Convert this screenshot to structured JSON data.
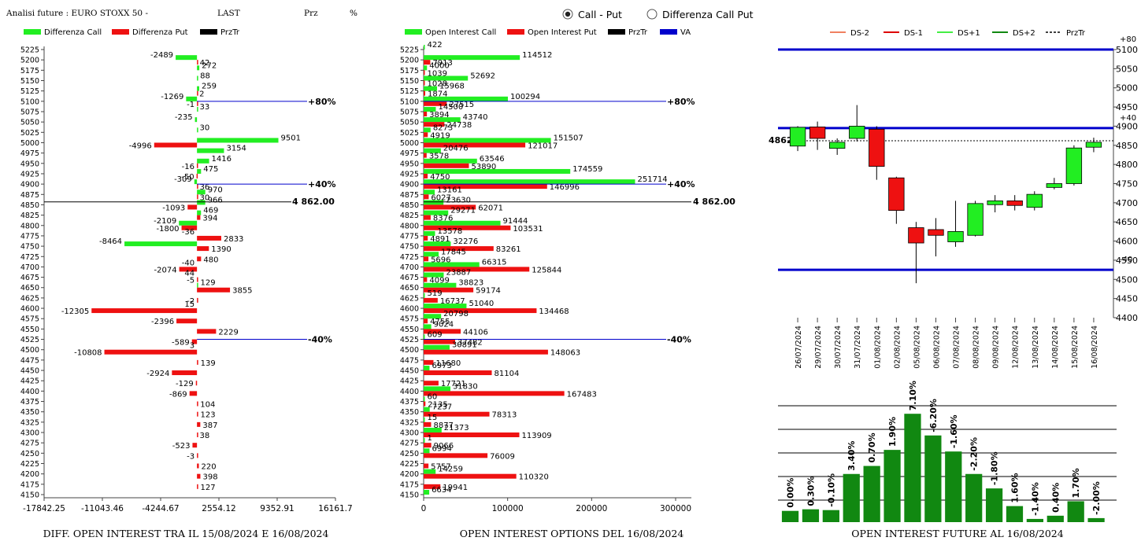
{
  "header": {
    "title": "Analisi future : EURO STOXX 50 -",
    "last_label": "LAST",
    "prz_label": "Prz",
    "pct_label": "%"
  },
  "radio": {
    "option1": "Call - Put",
    "option2": "Differenza Call Put",
    "selected": 1
  },
  "colors": {
    "green": "#22ee22",
    "red": "#ee1111",
    "blue": "#0000cc",
    "darkgreen": "#118811"
  },
  "chart_data": [
    {
      "type": "bar",
      "orientation": "horizontal",
      "title": "DIFF. OPEN INTEREST TRA IL 15/08/2024 E 16/08/2024",
      "legend": [
        "Differenza Call",
        "Differenza Put",
        "PrzTr"
      ],
      "xlim": [
        -17842.25,
        16161.7
      ],
      "xticks": [
        "-17842.25",
        "-11043.46",
        "-4244.67",
        "2554.12",
        "9352.91",
        "16161.7"
      ],
      "strikes": [
        5225,
        5200,
        5175,
        5150,
        5125,
        5100,
        5075,
        5050,
        5025,
        5000,
        4975,
        4950,
        4925,
        4900,
        4875,
        4850,
        4825,
        4800,
        4775,
        4750,
        4725,
        4700,
        4675,
        4650,
        4625,
        4600,
        4575,
        4550,
        4525,
        4500,
        4475,
        4450,
        4425,
        4400,
        4375,
        4350,
        4325,
        4300,
        4275,
        4250,
        4225,
        4200,
        4175,
        4150
      ],
      "call_diff": [
        0,
        -2489,
        272,
        88,
        259,
        -1269,
        33,
        -235,
        30,
        9501,
        3154,
        1416,
        475,
        -309,
        970,
        966,
        469,
        -2109,
        0,
        -8464,
        0,
        0,
        0,
        129,
        0,
        0,
        0,
        0,
        0,
        0,
        0,
        0,
        0,
        0,
        0,
        0,
        0,
        0,
        0,
        0,
        0,
        0,
        0,
        0
      ],
      "put_diff": [
        0,
        42,
        0,
        0,
        2,
        -1,
        0,
        0,
        0,
        -4996,
        0,
        -16,
        -50,
        36,
        30,
        -1093,
        394,
        -1800,
        2833,
        1390,
        480,
        -2074,
        -5,
        3855,
        -2,
        -12305,
        -2396,
        2229,
        -589,
        -10808,
        139,
        -2924,
        -129,
        -869,
        104,
        123,
        387,
        38,
        -523,
        -3,
        220,
        398,
        127,
        0
      ],
      "extra_labels": [
        {
          "strike": 4700,
          "text": "-40"
        },
        {
          "strike": 4675,
          "text": "44"
        },
        {
          "strike": 4775,
          "text": "-36"
        },
        {
          "strike": 4600,
          "text": "15"
        },
        {
          "strike": 4500,
          "text": "3"
        }
      ],
      "lines": [
        {
          "strike": 5100,
          "label": "+80%"
        },
        {
          "strike": 4900,
          "label": "+40%"
        },
        {
          "strike": 4525,
          "label": "-40%"
        }
      ],
      "price": {
        "strike": 4857,
        "label": "4 862.00"
      }
    },
    {
      "type": "bar",
      "orientation": "horizontal",
      "title": "OPEN INTEREST OPTIONS DEL 16/08/2024",
      "legend": [
        "Open Interest Call",
        "Open Interest Put",
        "PrzTr",
        "VA"
      ],
      "xlim": [
        0,
        300000
      ],
      "xticks": [
        "0",
        "100000",
        "200000",
        "300000"
      ],
      "strikes": [
        5225,
        5200,
        5175,
        5150,
        5125,
        5100,
        5075,
        5050,
        5025,
        5000,
        4975,
        4950,
        4925,
        4900,
        4875,
        4850,
        4825,
        4800,
        4775,
        4750,
        4725,
        4700,
        4675,
        4650,
        4625,
        4600,
        4575,
        4550,
        4525,
        4500,
        4475,
        4450,
        4425,
        4400,
        4375,
        4350,
        4325,
        4300,
        4275,
        4250,
        4225,
        4200,
        4175,
        4150
      ],
      "call_oi": [
        422,
        114512,
        4000,
        52692,
        15968,
        100294,
        14500,
        43740,
        8273,
        151507,
        20476,
        63546,
        174559,
        251714,
        13161,
        23630,
        29271,
        91444,
        13578,
        32276,
        17845,
        66315,
        23887,
        38823,
        519,
        51040,
        20798,
        9024,
        609,
        30891,
        0,
        6973,
        0,
        31830,
        60,
        7237,
        15,
        21373,
        1,
        6994,
        0,
        14259,
        0,
        6634
      ],
      "put_oi": [
        0,
        7913,
        1039,
        1028,
        1874,
        27515,
        3894,
        24738,
        4919,
        121017,
        3578,
        53890,
        4750,
        146996,
        6027,
        62071,
        8376,
        103531,
        4891,
        83261,
        5696,
        125844,
        4099,
        59174,
        16737,
        134468,
        4755,
        44106,
        37482,
        148063,
        11680,
        81104,
        17721,
        167483,
        2135,
        78313,
        8877,
        113909,
        9066,
        76009,
        5757,
        110320,
        19941,
        0
      ],
      "lines": [
        {
          "strike": 5100,
          "label": "+80%"
        },
        {
          "strike": 4900,
          "label": "+40%"
        },
        {
          "strike": 4525,
          "label": "-40%"
        }
      ],
      "price": {
        "strike": 4857,
        "label": "4 862.00"
      }
    },
    {
      "type": "candlestick",
      "legend": [
        "DS-2",
        "DS-1",
        "DS+1",
        "DS+2",
        "PrzTr"
      ],
      "ylim": [
        4400,
        5100
      ],
      "yticks": [
        "5100",
        "5050",
        "5000",
        "4950",
        "4900",
        "4850",
        "4800",
        "4750",
        "4700",
        "4650",
        "4600",
        "4550",
        "4500",
        "4450",
        "4400"
      ],
      "dates": [
        "26/07/2024",
        "29/07/2024",
        "30/07/2024",
        "31/07/2024",
        "01/08/2024",
        "02/08/2024",
        "05/08/2024",
        "06/08/2024",
        "07/08/2024",
        "08/08/2024",
        "09/08/2024",
        "12/08/2024",
        "13/08/2024",
        "14/08/2024",
        "15/08/2024",
        "16/08/2024"
      ],
      "open": [
        4848,
        4898,
        4842,
        4868,
        4892,
        4765,
        4635,
        4630,
        4598,
        4615,
        4695,
        4705,
        4688,
        4740,
        4750,
        4845
      ],
      "close": [
        4897,
        4868,
        4858,
        4900,
        4795,
        4680,
        4595,
        4615,
        4625,
        4698,
        4705,
        4693,
        4722,
        4750,
        4843,
        4858
      ],
      "high": [
        4900,
        4912,
        4868,
        4955,
        4900,
        4768,
        4650,
        4660,
        4705,
        4705,
        4720,
        4720,
        4730,
        4765,
        4850,
        4870
      ],
      "low": [
        4835,
        4838,
        4825,
        4860,
        4760,
        4645,
        4490,
        4560,
        4585,
        4612,
        4675,
        4680,
        4680,
        4735,
        4745,
        4832
      ],
      "levels": [
        {
          "value": 5100,
          "label": "+80"
        },
        {
          "value": 4895,
          "label": "+40"
        },
        {
          "value": 4525,
          "label": "-40"
        }
      ],
      "price": {
        "value": 4862,
        "label": "4862"
      }
    },
    {
      "type": "bar",
      "title": "OPEN INTEREST FUTURE AL 16/08/2024",
      "values": [
        1.4,
        1.6,
        1.5,
        6,
        7,
        9,
        13.5,
        10.8,
        8.8,
        6,
        4.2,
        2.0,
        0.4,
        0.8,
        2.6,
        0.5
      ],
      "labels": [
        "0.00%",
        "0.30%",
        "-0.10%",
        "3.40%",
        "0.70%",
        "1.90%",
        "7.10%",
        "-6.20%",
        "-1.60%",
        "-2.20%",
        "-1.80%",
        "1.60%",
        "-1.40%",
        "0.40%",
        "1.70%",
        "-2.00%"
      ]
    }
  ]
}
